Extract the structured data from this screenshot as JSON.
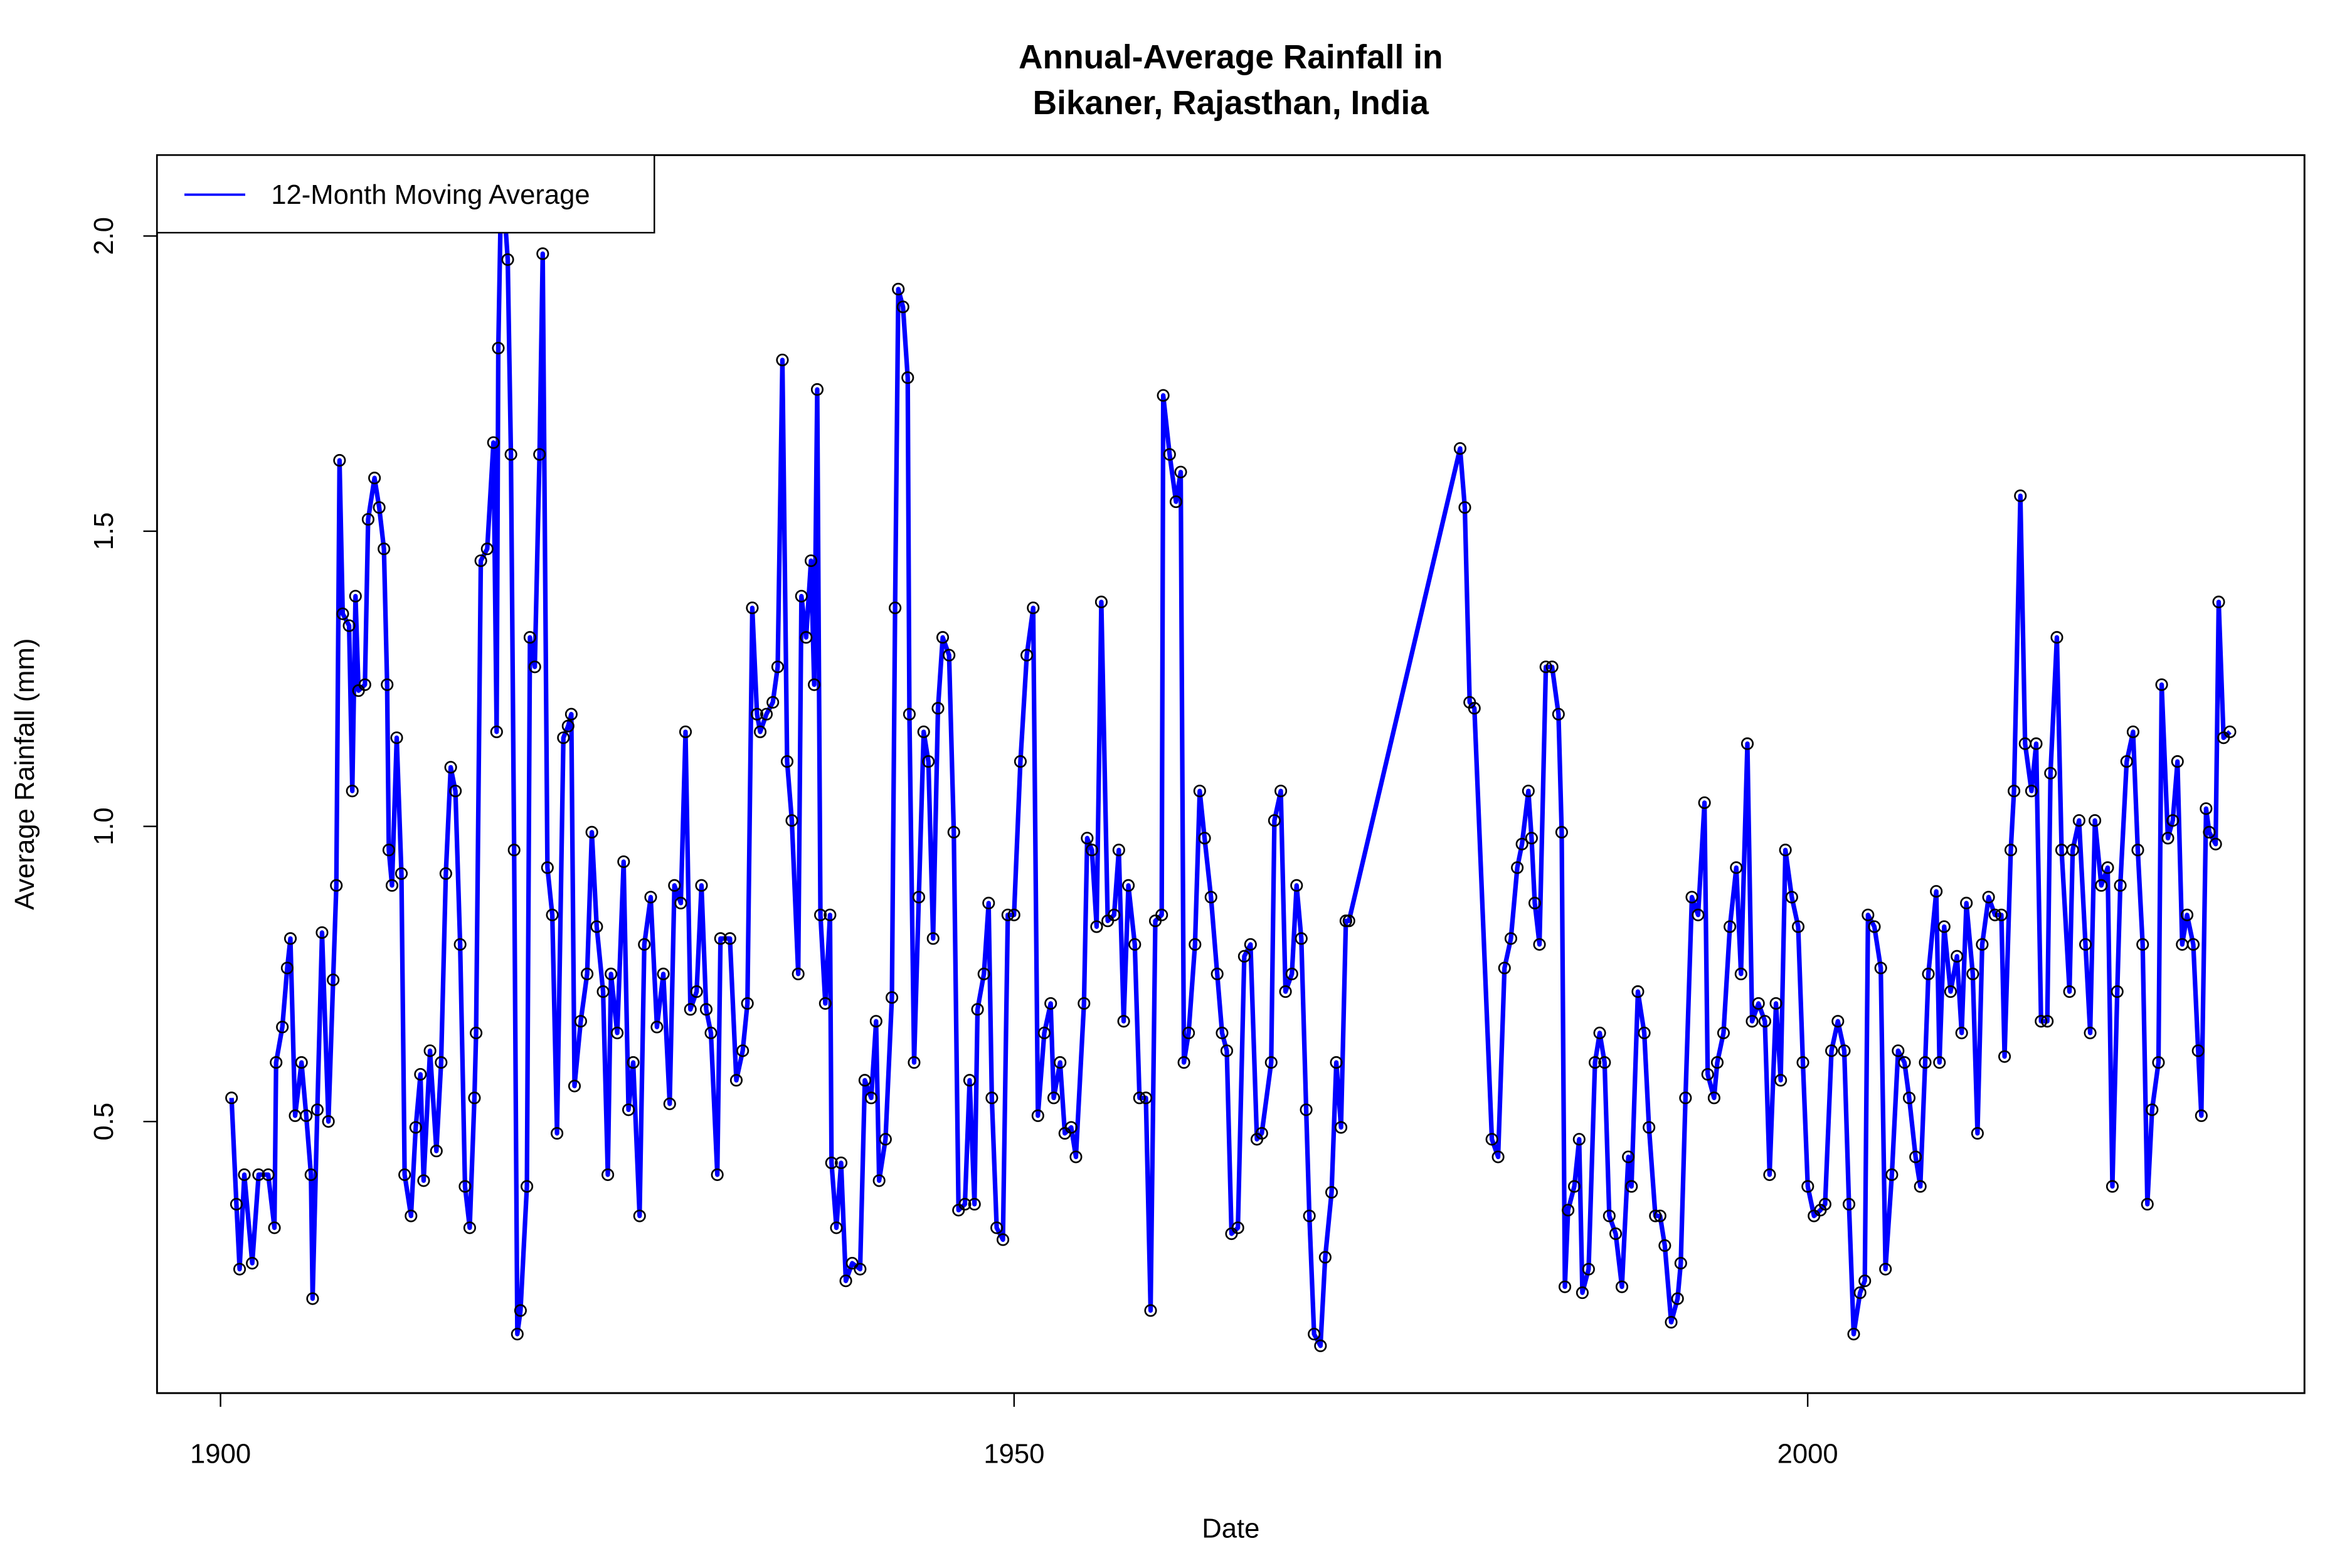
{
  "chart_data": {
    "type": "line",
    "title_lines": [
      "Annual-Average Rainfall in",
      "Bikaner, Rajasthan, India"
    ],
    "xlabel": "Date",
    "ylabel": "Average Rainfall (mm)",
    "xlim": [
      1896,
      2031.3
    ],
    "ylim": [
      0.04,
      2.137
    ],
    "xticks": [
      1900,
      1950,
      2000
    ],
    "xtick_labels": [
      "1900",
      "1950",
      "2000"
    ],
    "yticks": [
      0.5,
      1.0,
      1.5,
      2.0
    ],
    "ytick_labels": [
      "0.5",
      "1.0",
      "1.5",
      "2.0"
    ],
    "grid": false,
    "legend": {
      "placement": "top-left",
      "entries": [
        "12-Month Moving Average"
      ]
    },
    "colors": {
      "line": "#0000FF",
      "points": "#000000"
    },
    "series": [
      {
        "name": "12-Month Moving Average",
        "x": [
          1900.7,
          1901.0,
          1901.2,
          1901.5,
          1902.0,
          1902.4,
          1903.0,
          1903.4,
          1903.5,
          1903.9,
          1904.2,
          1904.4,
          1904.7,
          1905.1,
          1905.4,
          1905.7,
          1905.8,
          1906.1,
          1906.4,
          1906.8,
          1907.1,
          1907.3,
          1907.5,
          1907.7,
          1908.1,
          1908.3,
          1908.5,
          1908.7,
          1909.1,
          1909.3,
          1909.7,
          1910.0,
          1910.3,
          1910.5,
          1910.6,
          1910.8,
          1911.1,
          1911.4,
          1911.6,
          1912.0,
          1912.3,
          1912.6,
          1912.8,
          1913.2,
          1913.6,
          1913.9,
          1914.2,
          1914.5,
          1914.8,
          1915.1,
          1915.4,
          1915.7,
          1916.0,
          1916.1,
          1916.4,
          1916.8,
          1917.2,
          1917.4,
          1917.5,
          1917.7,
          1918.1,
          1918.3,
          1918.5,
          1918.7,
          1918.9,
          1919.3,
          1919.5,
          1919.8,
          1920.1,
          1920.3,
          1920.6,
          1920.9,
          1921.2,
          1921.6,
          1921.9,
          1922.1,
          1922.3,
          1922.7,
          1923.1,
          1923.4,
          1923.7,
          1924.1,
          1924.4,
          1924.6,
          1925.0,
          1925.4,
          1925.7,
          1926.0,
          1926.4,
          1926.7,
          1927.1,
          1927.5,
          1927.9,
          1928.3,
          1928.6,
          1929.0,
          1929.3,
          1929.6,
          1930.0,
          1930.3,
          1930.6,
          1930.9,
          1931.3,
          1931.5,
          1932.1,
          1932.5,
          1932.9,
          1933.2,
          1933.5,
          1933.8,
          1934.0,
          1934.4,
          1934.8,
          1935.1,
          1935.4,
          1935.7,
          1936.0,
          1936.4,
          1936.6,
          1936.9,
          1937.2,
          1937.4,
          1937.6,
          1937.8,
          1938.1,
          1938.4,
          1938.5,
          1938.8,
          1939.1,
          1939.4,
          1939.8,
          1940.3,
          1940.6,
          1941.0,
          1941.3,
          1941.5,
          1941.9,
          1942.3,
          1942.5,
          1942.7,
          1943.0,
          1943.3,
          1943.4,
          1943.7,
          1944.0,
          1944.3,
          1944.6,
          1944.9,
          1945.2,
          1945.5,
          1945.9,
          1946.2,
          1946.5,
          1946.9,
          1947.2,
          1947.5,
          1947.7,
          1948.1,
          1948.4,
          1948.6,
          1948.9,
          1949.3,
          1949.6,
          1950.0,
          1950.4,
          1950.8,
          1951.2,
          1951.5,
          1951.9,
          1952.3,
          1952.5,
          1952.9,
          1953.2,
          1953.6,
          1953.9,
          1954.4,
          1954.6,
          1954.9,
          1955.2,
          1955.5,
          1955.9,
          1956.3,
          1956.6,
          1956.9,
          1957.2,
          1957.6,
          1957.9,
          1958.3,
          1958.6,
          1958.9,
          1959.3,
          1959.4,
          1959.8,
          1960.2,
          1960.5,
          1960.7,
          1961.0,
          1961.4,
          1961.7,
          1962.0,
          1962.4,
          1962.8,
          1963.1,
          1963.4,
          1963.7,
          1964.1,
          1964.5,
          1964.9,
          1965.3,
          1965.6,
          1966.2,
          1966.4,
          1966.8,
          1967.1,
          1967.5,
          1967.8,
          1968.1,
          1968.4,
          1968.6,
          1968.9,
          1969.3,
          1969.6,
          1970.0,
          1970.3,
          1970.6,
          1970.9,
          1971.1,
          1978.1,
          1978.4,
          1978.7,
          1979.0,
          1980.1,
          1980.5,
          1980.9,
          1981.3,
          1981.7,
          1982.0,
          1982.4,
          1982.6,
          1982.8,
          1983.1,
          1983.5,
          1983.9,
          1984.3,
          1984.5,
          1984.7,
          1984.9,
          1985.3,
          1985.6,
          1985.8,
          1986.2,
          1986.6,
          1986.9,
          1987.2,
          1987.5,
          1987.9,
          1988.3,
          1988.7,
          1988.9,
          1989.3,
          1989.7,
          1990.0,
          1990.4,
          1990.7,
          1991.0,
          1991.4,
          1991.8,
          1992.0,
          1992.3,
          1992.7,
          1993.1,
          1993.5,
          1993.7,
          1994.1,
          1994.3,
          1994.7,
          1995.1,
          1995.5,
          1995.8,
          1996.2,
          1996.5,
          1996.9,
          1997.3,
          1997.6,
          1998.0,
          1998.3,
          1998.6,
          1999.0,
          1999.4,
          1999.7,
          2000.0,
          2000.4,
          2000.8,
          2001.1,
          2001.5,
          2001.9,
          2002.3,
          2002.6,
          2002.9,
          2003.3,
          2003.6,
          2003.8,
          2004.2,
          2004.6,
          2004.9,
          2005.3,
          2005.7,
          2006.1,
          2006.4,
          2006.8,
          2007.1,
          2007.4,
          2007.6,
          2008.1,
          2008.3,
          2008.6,
          2009.0,
          2009.4,
          2009.7,
          2010.0,
          2010.4,
          2010.7,
          2011.0,
          2011.4,
          2011.8,
          2012.2,
          2012.4,
          2012.8,
          2013.0,
          2013.4,
          2013.7,
          2014.1,
          2014.4,
          2014.7,
          2015.1,
          2015.3,
          2015.7,
          2016.0,
          2016.5,
          2016.7,
          2017.1,
          2017.5,
          2017.8,
          2018.1,
          2018.5,
          2018.9,
          2019.2,
          2019.5,
          2019.7,
          2020.1,
          2020.5,
          2020.8,
          2021.1,
          2021.4,
          2021.7,
          2022.1,
          2022.3,
          2022.7,
          2023.0,
          2023.3,
          2023.6,
          2023.9,
          2024.3,
          2024.6,
          2024.8,
          2025.1,
          2025.3,
          2025.7,
          2025.9,
          2026.2,
          2026.6
        ],
        "y": [
          0.54,
          0.36,
          0.25,
          0.41,
          0.26,
          0.41,
          0.41,
          0.32,
          0.6,
          0.66,
          0.76,
          0.81,
          0.51,
          0.6,
          0.51,
          0.41,
          0.2,
          0.52,
          0.82,
          0.5,
          0.74,
          0.9,
          1.62,
          1.36,
          1.34,
          1.06,
          1.39,
          1.23,
          1.24,
          1.52,
          1.59,
          1.54,
          1.47,
          1.24,
          0.96,
          0.9,
          1.15,
          0.92,
          0.41,
          0.34,
          0.49,
          0.58,
          0.4,
          0.62,
          0.45,
          0.6,
          0.92,
          1.1,
          1.06,
          0.8,
          0.39,
          0.32,
          0.54,
          0.65,
          1.45,
          1.47,
          1.65,
          1.16,
          1.81,
          2.12,
          1.96,
          1.63,
          0.96,
          0.14,
          0.18,
          0.39,
          1.32,
          1.27,
          1.63,
          1.97,
          0.93,
          0.85,
          0.48,
          1.15,
          1.17,
          1.19,
          0.56,
          0.67,
          0.75,
          0.99,
          0.83,
          0.72,
          0.41,
          0.75,
          0.65,
          0.94,
          0.52,
          0.6,
          0.34,
          0.8,
          0.88,
          0.66,
          0.75,
          0.53,
          0.9,
          0.87,
          1.16,
          0.69,
          0.72,
          0.9,
          0.69,
          0.65,
          0.41,
          0.81,
          0.81,
          0.57,
          0.62,
          0.7,
          1.37,
          1.19,
          1.16,
          1.19,
          1.21,
          1.27,
          1.79,
          1.11,
          1.01,
          0.75,
          1.39,
          1.32,
          1.45,
          1.24,
          1.74,
          0.85,
          0.7,
          0.85,
          0.43,
          0.32,
          0.43,
          0.23,
          0.26,
          0.25,
          0.57,
          0.54,
          0.67,
          0.4,
          0.47,
          0.71,
          1.37,
          1.91,
          1.88,
          1.76,
          1.19,
          0.6,
          0.88,
          1.16,
          1.11,
          0.81,
          1.2,
          1.32,
          1.29,
          0.99,
          0.35,
          0.36,
          0.57,
          0.36,
          0.69,
          0.75,
          0.87,
          0.54,
          0.32,
          0.3,
          0.85,
          0.85,
          1.11,
          1.29,
          1.37,
          0.51,
          0.65,
          0.7,
          0.54,
          0.6,
          0.48,
          0.49,
          0.44,
          0.7,
          0.98,
          0.96,
          0.83,
          1.38,
          0.84,
          0.85,
          0.96,
          0.67,
          0.9,
          0.8,
          0.54,
          0.54,
          0.18,
          0.84,
          0.85,
          1.73,
          1.63,
          1.55,
          1.6,
          0.6,
          0.65,
          0.8,
          1.06,
          0.98,
          0.88,
          0.75,
          0.65,
          0.62,
          0.31,
          0.32,
          0.78,
          0.8,
          0.47,
          0.48,
          0.6,
          1.01,
          1.06,
          0.72,
          0.75,
          0.9,
          0.81,
          0.52,
          0.34,
          0.14,
          0.12,
          0.27,
          0.38,
          0.6,
          0.49,
          0.84,
          0.84,
          1.64,
          1.54,
          1.21,
          1.2,
          0.47,
          0.44,
          0.76,
          0.81,
          0.93,
          0.97,
          1.06,
          0.98,
          0.87,
          0.8,
          1.27,
          1.27,
          1.19,
          0.99,
          0.22,
          0.35,
          0.39,
          0.47,
          0.21,
          0.25,
          0.6,
          0.65,
          0.6,
          0.34,
          0.31,
          0.22,
          0.44,
          0.39,
          0.72,
          0.65,
          0.49,
          0.34,
          0.34,
          0.29,
          0.16,
          0.2,
          0.26,
          0.54,
          0.88,
          0.85,
          1.04,
          0.58,
          0.54,
          0.6,
          0.65,
          0.83,
          0.93,
          0.75,
          1.14,
          0.67,
          0.7,
          0.67,
          0.41,
          0.7,
          0.57,
          0.96,
          0.88,
          0.83,
          0.6,
          0.39,
          0.34,
          0.35,
          0.36,
          0.62,
          0.67,
          0.62,
          0.36,
          0.14,
          0.21,
          0.23,
          0.85,
          0.83,
          0.76,
          0.25,
          0.41,
          0.62,
          0.6,
          0.54,
          0.44,
          0.39,
          0.6,
          0.75,
          0.89,
          0.6,
          0.83,
          0.72,
          0.78,
          0.65,
          0.87,
          0.75,
          0.48,
          0.8,
          0.88,
          0.85,
          0.85,
          0.61,
          0.96,
          1.06,
          1.56,
          1.14,
          1.06,
          1.14,
          0.67,
          0.67,
          1.09,
          1.32,
          0.96,
          0.72,
          0.96,
          1.01,
          0.8,
          0.65,
          1.01,
          0.9,
          0.93,
          0.39,
          0.72,
          0.9,
          1.11,
          1.16,
          0.96,
          0.8,
          0.36,
          0.52,
          0.6,
          1.24,
          0.98,
          1.01,
          1.11,
          0.8,
          0.85,
          0.8,
          0.62,
          0.51,
          1.03,
          0.99,
          0.97,
          1.38,
          1.15,
          1.16
        ]
      }
    ]
  }
}
